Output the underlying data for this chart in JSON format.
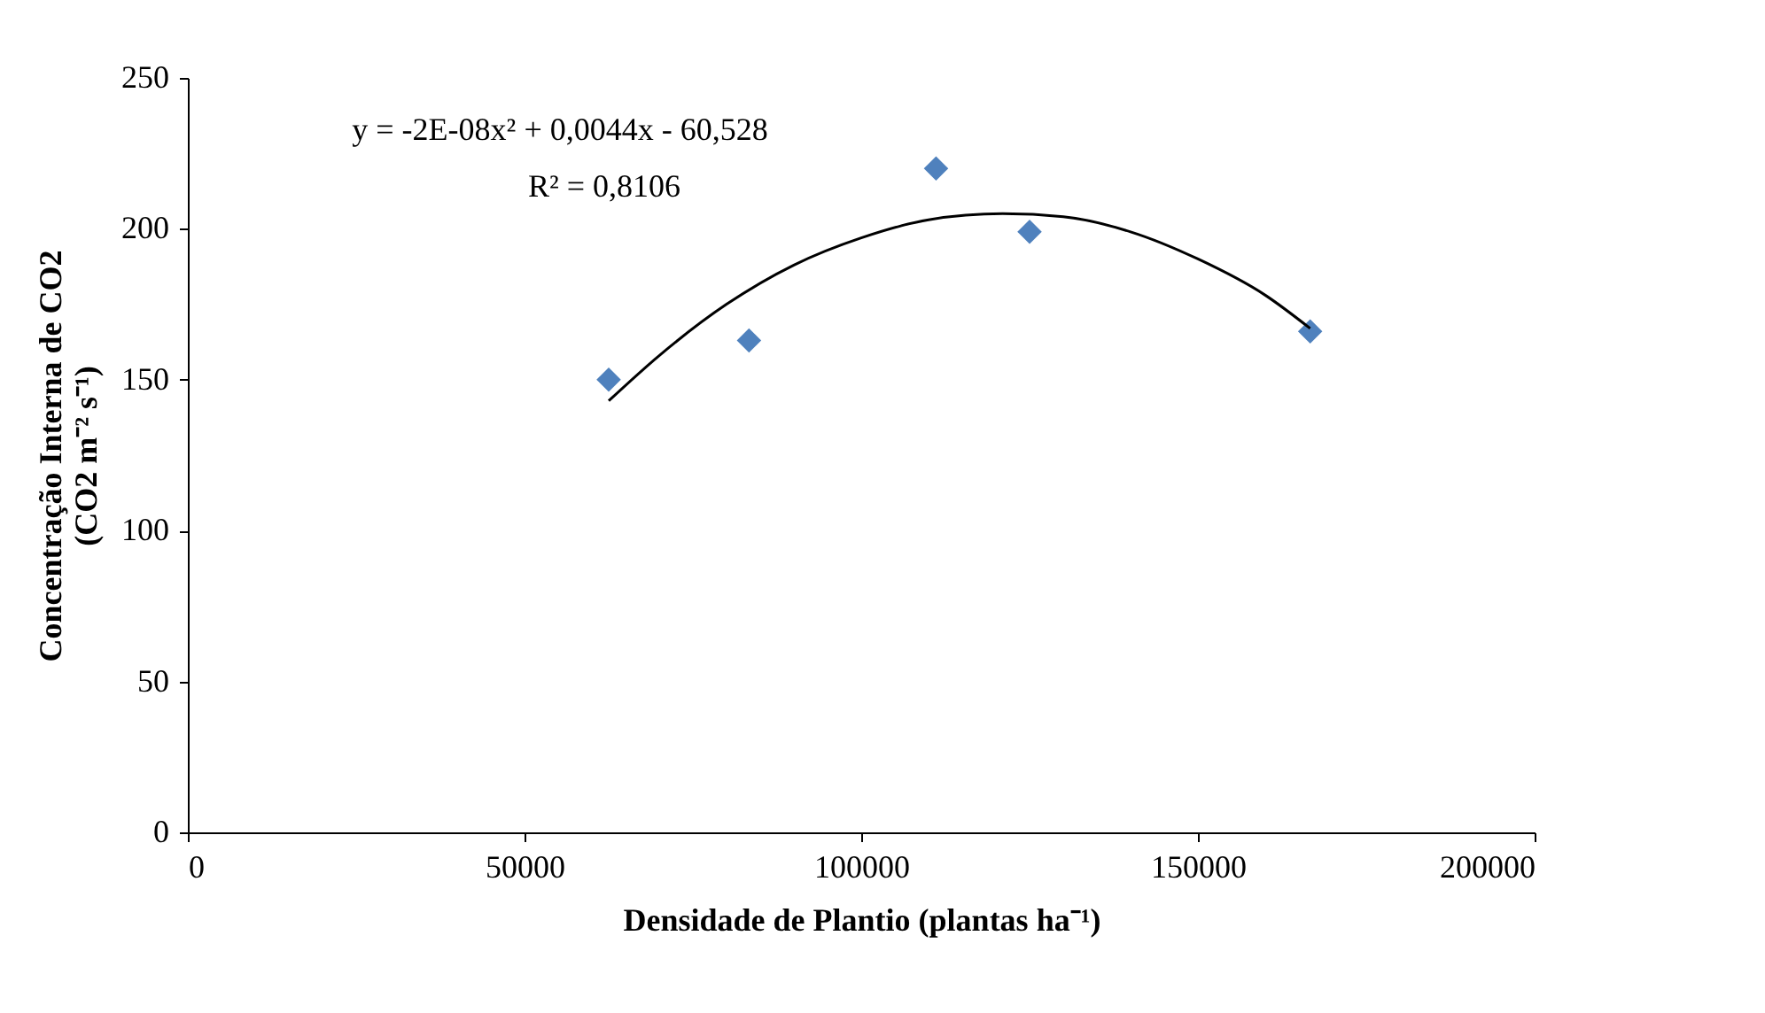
{
  "chart_data": {
    "type": "scatter",
    "xlabel": "Densidade de Plantio (plantas ha⁻¹)",
    "ylabel": "Concentração Interna de CO2\n(CO2 m⁻² s⁻¹)",
    "xlim": [
      0,
      200000
    ],
    "xticks": [
      0,
      50000,
      100000,
      150000,
      200000
    ],
    "ylim": [
      0,
      250
    ],
    "yticks": [
      0,
      50,
      100,
      150,
      200,
      250
    ],
    "grid": false,
    "annotations": [
      "y = -2E-08x² + 0,0044x - 60,528",
      "R² = 0,8106"
    ],
    "series": [
      {
        "color": "#4f81bd",
        "marker": "diamond",
        "x": [
          62500,
          83333,
          111111,
          125000,
          166667
        ],
        "values": [
          150,
          163,
          220,
          199,
          166
        ]
      },
      {
        "type": "line",
        "color": "#000000",
        "marker": "none",
        "line_style": "solid",
        "x": [
          62500,
          70000,
          80000,
          90000,
          100000,
          110000,
          121000,
          130000,
          140000,
          150000,
          160000,
          166667
        ],
        "values": [
          143,
          158,
          175,
          188,
          197,
          203,
          205,
          204,
          199,
          190,
          178,
          167
        ]
      }
    ]
  }
}
